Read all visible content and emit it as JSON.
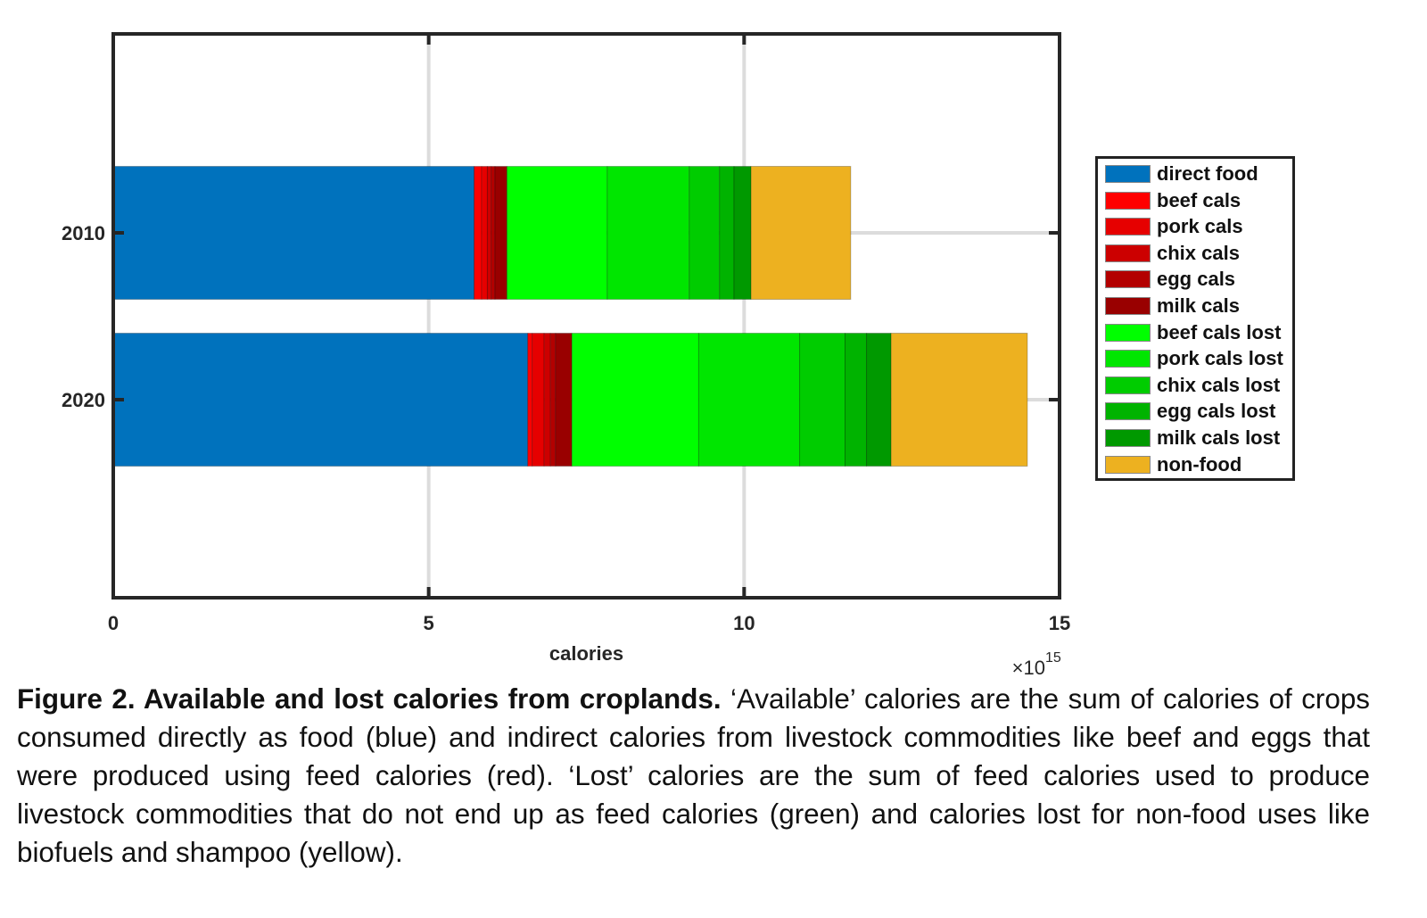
{
  "chart_data": {
    "type": "bar",
    "orientation": "horizontal",
    "stacked": true,
    "categories": [
      "2010",
      "2020"
    ],
    "xlabel": "calories",
    "x_multiplier": "×10",
    "x_exponent": "15",
    "xlim": [
      0,
      15
    ],
    "xticks": [
      "0",
      "5",
      "10",
      "15"
    ],
    "grid": true,
    "legend_position": "right",
    "series": [
      {
        "name": "direct food",
        "color": "#0072BD",
        "values": [
          5.72,
          6.57
        ]
      },
      {
        "name": "beef cals",
        "color": "#FF0000",
        "values": [
          0.12,
          0.07
        ]
      },
      {
        "name": "pork cals",
        "color": "#E60000",
        "values": [
          0.09,
          0.19
        ]
      },
      {
        "name": "chix cals",
        "color": "#CC0000",
        "values": [
          0.06,
          0.1
        ]
      },
      {
        "name": "egg cals",
        "color": "#B30000",
        "values": [
          0.06,
          0.08
        ]
      },
      {
        "name": "milk cals",
        "color": "#990000",
        "values": [
          0.19,
          0.26
        ]
      },
      {
        "name": "beef cals lost",
        "color": "#00FF00",
        "values": [
          1.59,
          2.01
        ]
      },
      {
        "name": "pork cals lost",
        "color": "#00E600",
        "values": [
          1.3,
          1.6
        ]
      },
      {
        "name": "chix cals lost",
        "color": "#00CC00",
        "values": [
          0.48,
          0.72
        ]
      },
      {
        "name": "egg cals lost",
        "color": "#00B300",
        "values": [
          0.23,
          0.34
        ]
      },
      {
        "name": "milk cals lost",
        "color": "#009900",
        "values": [
          0.27,
          0.39
        ]
      },
      {
        "name": "non-food",
        "color": "#EDB120",
        "values": [
          1.58,
          2.16
        ]
      }
    ]
  },
  "caption": {
    "title": "Figure 2. Available and lost calories from croplands.",
    "body": " ‘Available’ calories are the sum of calories of crops consumed directly as food (blue) and indirect calories from livestock commodities like beef and eggs that were produced using feed calories (red). ‘Lost’ calories are the sum of feed calories used to produce livestock commodities that do not end up as feed calories (green) and calories lost for non-food uses like biofuels and shampoo (yellow)."
  }
}
